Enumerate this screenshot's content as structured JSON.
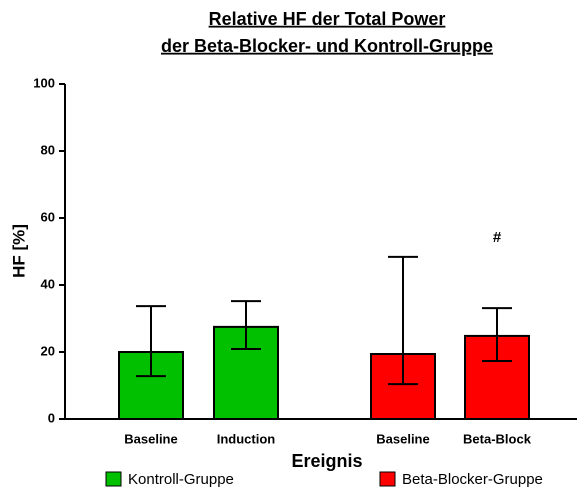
{
  "chart_data": {
    "type": "bar",
    "title": [
      "Relative HF der  Total Power",
      "der Beta-Blocker- und Kontroll-Gruppe"
    ],
    "x_label": "Ereignis",
    "y_label": "HF [%]",
    "categories": [
      "Baseline",
      "Induction",
      "Baseline",
      "Beta-Block"
    ],
    "series": [
      {
        "name": "Kontroll-Gruppe",
        "color": "#00c000",
        "values": [
          20,
          27.5,
          null,
          null
        ],
        "error_plus": [
          13.7,
          7.7,
          null,
          null
        ],
        "error_minus": [
          7.2,
          6.6,
          null,
          null
        ]
      },
      {
        "name": "Beta-Blocker-Gruppe",
        "color": "#ff0000",
        "values": [
          null,
          null,
          19.4,
          24.8
        ],
        "error_plus": [
          null,
          null,
          29,
          8.3
        ],
        "error_minus": [
          null,
          null,
          9,
          7.5
        ]
      }
    ],
    "annotations": [
      {
        "text": "#",
        "category": 3
      }
    ],
    "ylim": [
      0,
      100
    ],
    "yticks": [
      0,
      20,
      40,
      60,
      80,
      100
    ],
    "grid": false,
    "legend": "bottom"
  }
}
